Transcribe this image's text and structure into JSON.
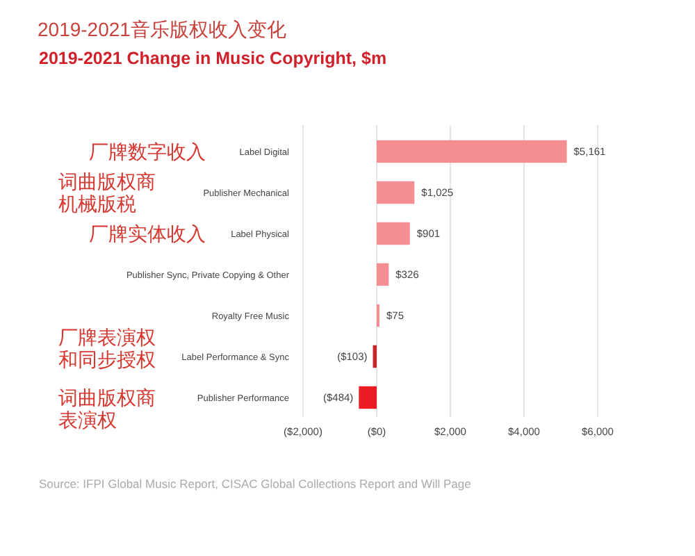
{
  "chart_data": {
    "type": "bar",
    "orientation": "horizontal",
    "title": "2019-2021音乐版权收入变化",
    "subtitle": "2019-2021 Change in Music Copyright, $m",
    "categories": [
      "Label Digital",
      "Publisher Mechanical",
      "Label Physical",
      "Publisher Sync, Private Copying & Other",
      "Royalty Free Music",
      "Label Performance & Sync",
      "Publisher Performance"
    ],
    "values": [
      5161,
      1025,
      901,
      326,
      75,
      -103,
      -484
    ],
    "colors": [
      "#f58e93",
      "#f58e93",
      "#f58e93",
      "#f58e93",
      "#f58e93",
      "#c8262c",
      "#ec1c24"
    ],
    "value_labels": [
      "$5,161",
      "$1,025",
      "$901",
      "$326",
      "$75",
      "($103)",
      "($484)"
    ],
    "xlim": [
      -2000,
      6000
    ],
    "xticks": [
      {
        "value": -2000,
        "label": "($2,000)"
      },
      {
        "value": 0,
        "label": "($0)"
      },
      {
        "value": 2000,
        "label": "$2,000"
      },
      {
        "value": 4000,
        "label": "$4,000"
      },
      {
        "value": 6000,
        "label": "$6,000"
      }
    ],
    "grid": "x",
    "annotations": [
      "厂牌数字收入",
      "词曲版权商机械版税",
      "厂牌实体收入",
      "厂牌表演权和同步授权",
      "词曲版权商表演权",
      "Source: IFPI Global Music Report, CISAC Global Collections Report and Will Page"
    ]
  }
}
